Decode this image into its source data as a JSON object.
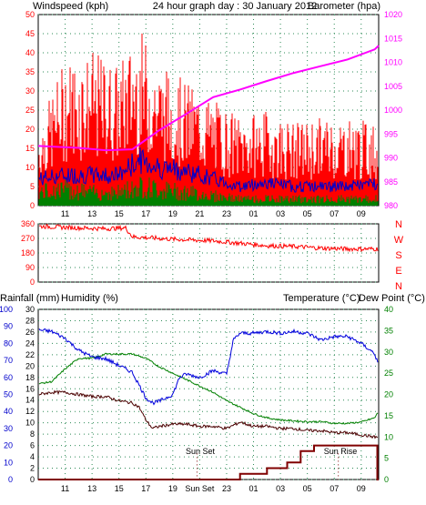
{
  "header": {
    "left_title": "Windspeed (kph)",
    "center_title": "24 hour graph day : 30 January 2012",
    "right_title": "Barometer (hpa)"
  },
  "bottom_header": {
    "rain_label": "Rainfall (mm)",
    "humidity_label": "Humidity (%)",
    "temp_label": "Temperature (°C)",
    "dew_label": "Dew Point (°C)"
  },
  "colors": {
    "wind_gust": "#ff0000",
    "wind_avg": "#0000cc",
    "wind_low": "#008000",
    "barometer": "#ff00ff",
    "direction": "#ff0000",
    "humidity": "#0000dd",
    "temperature": "#008000",
    "dewpoint": "#4a0000",
    "rain": "#800000",
    "axis": "#000000",
    "grid": "#2e8b57"
  },
  "annotations": {
    "sunset": "Sun Set",
    "sunrise": "Sun Rise"
  },
  "chart_data": [
    {
      "type": "line",
      "name": "wind-barometer",
      "x_ticks": [
        "11",
        "13",
        "15",
        "17",
        "19",
        "21",
        "23",
        "01",
        "03",
        "05",
        "07",
        "09"
      ],
      "y_left_ticks": [
        0,
        5,
        10,
        15,
        20,
        25,
        30,
        35,
        40,
        45,
        50
      ],
      "y_left_range": [
        0,
        50
      ],
      "y_right_ticks": [
        980,
        985,
        990,
        995,
        1000,
        1005,
        1010,
        1015,
        1020
      ],
      "y_right_range": [
        980,
        1020
      ],
      "series": [
        {
          "key": "barometer",
          "hours": [
            9,
            12,
            14,
            16,
            18,
            20,
            22,
            24,
            26,
            28,
            30,
            32,
            34,
            34.3
          ],
          "values": [
            992.5,
            992.1,
            991.6,
            991.8,
            995.8,
            999.2,
            1002.7,
            1004.3,
            1006.1,
            1007.8,
            1009.2,
            1010.6,
            1012.7,
            1013.5
          ]
        },
        {
          "key": "gust_envelope",
          "hours": [
            9,
            11,
            13,
            15,
            16.5,
            18,
            20,
            22,
            24,
            26,
            28,
            30,
            32,
            34.3
          ],
          "values": [
            13,
            25,
            26,
            24,
            30,
            24,
            21,
            18,
            15,
            16,
            14,
            15,
            15,
            14
          ]
        },
        {
          "key": "avg_envelope",
          "hours": [
            9,
            11,
            13,
            15,
            16.5,
            18,
            20,
            22,
            24,
            26,
            28,
            30,
            32,
            34.3
          ],
          "values": [
            7,
            8,
            8,
            8,
            12,
            10,
            9,
            7,
            5,
            6,
            5,
            5,
            5,
            6
          ]
        },
        {
          "key": "low_envelope",
          "hours": [
            9,
            11,
            13,
            15,
            16.5,
            18,
            20,
            22,
            24,
            26,
            28,
            30,
            32,
            34.3
          ],
          "values": [
            4,
            5,
            4,
            4,
            6,
            5,
            4,
            3,
            2,
            2,
            2,
            2,
            2,
            2
          ]
        }
      ]
    },
    {
      "type": "line",
      "name": "wind-direction",
      "y_ticks": [
        360,
        270,
        180,
        90,
        0
      ],
      "y_range": [
        0,
        360
      ],
      "compass": [
        "N",
        "W",
        "S",
        "E",
        "N"
      ],
      "series": [
        {
          "key": "direction",
          "hours": [
            9,
            12,
            14,
            15.5,
            16,
            19,
            22,
            24,
            26,
            28,
            30,
            32,
            34.3
          ],
          "values": [
            345,
            335,
            330,
            335,
            280,
            265,
            255,
            240,
            225,
            220,
            210,
            205,
            205
          ]
        }
      ]
    },
    {
      "type": "line",
      "name": "humidity-temperature-rain",
      "x_ticks": [
        "11",
        "13",
        "15",
        "17",
        "19",
        "Sun Set",
        "23",
        "01",
        "03",
        "05",
        "07",
        "09"
      ],
      "y_hum_ticks": [
        0,
        10,
        20,
        30,
        40,
        50,
        60,
        70,
        80,
        90,
        100
      ],
      "y_hum_range": [
        0,
        100
      ],
      "y_rain_ticks": [
        0,
        2,
        4,
        6,
        8,
        10,
        12,
        14,
        16,
        18,
        20,
        22,
        24,
        26,
        28,
        30
      ],
      "y_rain_range": [
        0,
        30
      ],
      "y_temp_ticks": [
        0,
        5,
        10,
        15,
        20,
        25,
        30,
        35,
        40
      ],
      "y_temp_range": [
        0,
        40
      ],
      "series": [
        {
          "key": "humidity",
          "hours": [
            9,
            10,
            11,
            12,
            13,
            14,
            15,
            16,
            17,
            17.5,
            18,
            19,
            19.5,
            20,
            21,
            22,
            23,
            23.5,
            24,
            25,
            26,
            27,
            28,
            29,
            30,
            31,
            32,
            33,
            34,
            34.3
          ],
          "values": [
            88,
            87,
            83,
            76,
            72,
            71,
            67,
            63,
            48,
            45,
            46,
            50,
            60,
            62,
            60,
            64,
            62,
            82,
            86,
            86,
            87,
            86,
            87,
            86,
            82,
            84,
            84,
            80,
            74,
            67
          ]
        },
        {
          "key": "temperature",
          "hours": [
            9,
            10,
            11,
            12,
            13,
            14,
            15,
            16,
            17,
            18,
            19,
            20,
            21,
            22,
            23,
            24,
            25,
            26,
            27,
            28,
            29,
            30,
            31,
            32,
            33,
            34,
            34.3
          ],
          "values": [
            22.5,
            23,
            26,
            28.5,
            28.5,
            29.5,
            29.5,
            29.5,
            28.5,
            26.5,
            25,
            23.5,
            22,
            20.5,
            18.5,
            17,
            15.5,
            14.5,
            14,
            13.8,
            13.6,
            13.6,
            13.2,
            13.2,
            13.5,
            14.5,
            16
          ]
        },
        {
          "key": "dewpoint",
          "hours": [
            9,
            10,
            11,
            12,
            13,
            14,
            15,
            16,
            16.5,
            17,
            17.5,
            18,
            19,
            20,
            21,
            22,
            23,
            24,
            25,
            26,
            27,
            28,
            29,
            30,
            31,
            32,
            33,
            34,
            34.3
          ],
          "values": [
            20,
            20.5,
            20.5,
            20,
            19.5,
            19.5,
            18.5,
            18,
            17,
            14,
            12,
            12.5,
            13,
            13,
            12.5,
            12.5,
            12,
            13.5,
            12.5,
            12.5,
            12,
            12,
            11.5,
            11.5,
            11,
            11,
            10.5,
            10,
            10
          ]
        },
        {
          "key": "rainfall",
          "hours": [
            9,
            23.5,
            24,
            25,
            26,
            27,
            27.5,
            28,
            28.5,
            29,
            29.5,
            30,
            34.1,
            34.2,
            34.3
          ],
          "values": [
            0,
            0,
            1,
            1,
            2,
            2,
            3,
            3,
            5,
            5,
            6,
            6,
            6,
            0,
            0
          ]
        }
      ]
    }
  ]
}
